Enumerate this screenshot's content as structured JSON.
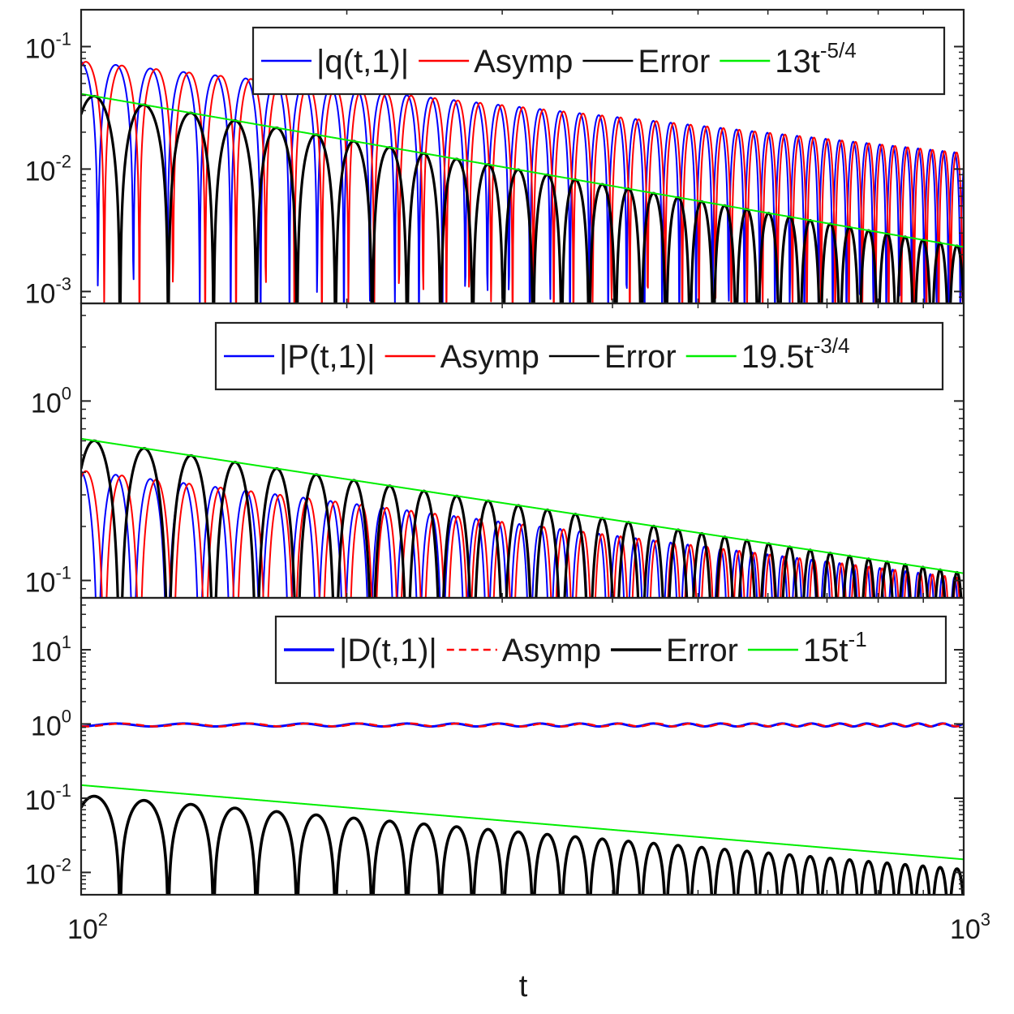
{
  "chart_data": [
    {
      "type": "line",
      "title": "",
      "xlabel": "",
      "ylabel": "",
      "x_scale": "log",
      "y_scale": "log",
      "xlim": [
        100,
        1000
      ],
      "ylim": [
        0.0008,
        0.2
      ],
      "y_ticks": [
        {
          "value": 0.1,
          "base": "10",
          "exp": "-1"
        },
        {
          "value": 0.01,
          "base": "10",
          "exp": "-2"
        },
        {
          "value": 0.001,
          "base": "10",
          "exp": "-3"
        }
      ],
      "legend": {
        "placement": "top-right",
        "entries": [
          {
            "label": "|q(t,1)|",
            "color": "#0000ff",
            "style": "solid"
          },
          {
            "label": "Asymp",
            "color": "#ff0000",
            "style": "solid"
          },
          {
            "label": "Error",
            "color": "#000000",
            "style": "solid"
          },
          {
            "label_base": "13t",
            "label_sup": "-5/4",
            "color": "#00ee00",
            "style": "solid"
          }
        ]
      },
      "series": [
        {
          "name": "|q(t,1)|",
          "kind": "oscillating",
          "amplitude": {
            "coef": 2.4,
            "power": -0.75
          },
          "phase_k": 6.5,
          "phase0": 1.1,
          "color": "#0000ff",
          "stroke": 2
        },
        {
          "name": "Asymp",
          "kind": "oscillating",
          "amplitude": {
            "coef": 2.4,
            "power": -0.75
          },
          "phase_k": 6.5,
          "phase0": 0.55,
          "color": "#ff0000",
          "stroke": 2
        },
        {
          "name": "Error",
          "kind": "oscillating",
          "amplitude": {
            "coef": 13,
            "power": -1.25
          },
          "phase_k": 4.6,
          "phase0": 0.3,
          "color": "#000000",
          "stroke": 3.2
        },
        {
          "name": "13t^{-5/4}",
          "kind": "power",
          "coef": 13,
          "power": -1.25,
          "color": "#00ee00",
          "stroke": 2
        }
      ]
    },
    {
      "type": "line",
      "title": "",
      "xlabel": "",
      "ylabel": "",
      "x_scale": "log",
      "y_scale": "log",
      "xlim": [
        100,
        1000
      ],
      "ylim": [
        0.08,
        3.5
      ],
      "y_ticks": [
        {
          "value": 1,
          "base": "10",
          "exp": "0"
        },
        {
          "value": 0.1,
          "base": "10",
          "exp": "-1"
        }
      ],
      "legend": {
        "placement": "top-right",
        "entries": [
          {
            "label": "|P(t,1)|",
            "color": "#0000ff",
            "style": "solid"
          },
          {
            "label": "Asymp",
            "color": "#ff0000",
            "style": "solid"
          },
          {
            "label": "Error",
            "color": "#000000",
            "style": "solid"
          },
          {
            "label_base": "19.5t",
            "label_sup": "-3/4",
            "color": "#00ee00",
            "style": "solid"
          }
        ]
      },
      "series": [
        {
          "name": "|P(t,1)|",
          "kind": "oscillating",
          "amplitude": {
            "coef": 6.5,
            "power": -0.6
          },
          "phase_k": 6.5,
          "phase0": 1.1,
          "color": "#0000ff",
          "stroke": 2
        },
        {
          "name": "Asymp",
          "kind": "oscillating",
          "amplitude": {
            "coef": 6.5,
            "power": -0.6
          },
          "phase_k": 6.5,
          "phase0": 0.55,
          "color": "#ff0000",
          "stroke": 2
        },
        {
          "name": "Error",
          "kind": "oscillating",
          "amplitude": {
            "coef": 19.5,
            "power": -0.75
          },
          "phase_k": 4.6,
          "phase0": 0.3,
          "color": "#000000",
          "stroke": 3.2
        },
        {
          "name": "19.5t^{-3/4}",
          "kind": "power",
          "coef": 19.5,
          "power": -0.75,
          "color": "#00ee00",
          "stroke": 2
        }
      ]
    },
    {
      "type": "line",
      "title": "",
      "xlabel": "t",
      "ylabel": "",
      "x_scale": "log",
      "y_scale": "log",
      "xlim": [
        100,
        1000
      ],
      "ylim": [
        0.005,
        50
      ],
      "y_ticks": [
        {
          "value": 10,
          "base": "10",
          "exp": "1"
        },
        {
          "value": 1,
          "base": "10",
          "exp": "0"
        },
        {
          "value": 0.1,
          "base": "10",
          "exp": "-1"
        },
        {
          "value": 0.01,
          "base": "10",
          "exp": "-2"
        }
      ],
      "x_ticks": [
        {
          "value": 100,
          "base": "10",
          "exp": "2"
        },
        {
          "value": 1000,
          "base": "10",
          "exp": "3"
        }
      ],
      "legend": {
        "placement": "top-right",
        "entries": [
          {
            "label": "|D(t,1)|",
            "color": "#0000ff",
            "style": "solid-thick"
          },
          {
            "label": "Asymp",
            "color": "#ff0000",
            "style": "dashed"
          },
          {
            "label": "Error",
            "color": "#000000",
            "style": "solid-thick"
          },
          {
            "label_base": "15t",
            "label_sup": "-1",
            "color": "#00ee00",
            "style": "solid"
          }
        ]
      },
      "series": [
        {
          "name": "|D(t,1)|",
          "kind": "near_constant",
          "level": 0.97,
          "ripple": 0.045,
          "phase_k": 6.5,
          "phase0": 1.1,
          "color": "#0000ff",
          "stroke": 3
        },
        {
          "name": "Asymp",
          "kind": "near_constant",
          "level": 0.97,
          "ripple": 0.045,
          "phase_k": 6.5,
          "phase0": 0.55,
          "color": "#ff0000",
          "stroke": 2.5,
          "dashed": true
        },
        {
          "name": "Error",
          "kind": "oscillating",
          "amplitude": {
            "coef": 11,
            "power": -1
          },
          "phase_k": 4.6,
          "phase0": 0.3,
          "color": "#000000",
          "stroke": 3.6
        },
        {
          "name": "15t^{-1}",
          "kind": "power",
          "coef": 15,
          "power": -1,
          "color": "#00ee00",
          "stroke": 2
        }
      ]
    }
  ]
}
